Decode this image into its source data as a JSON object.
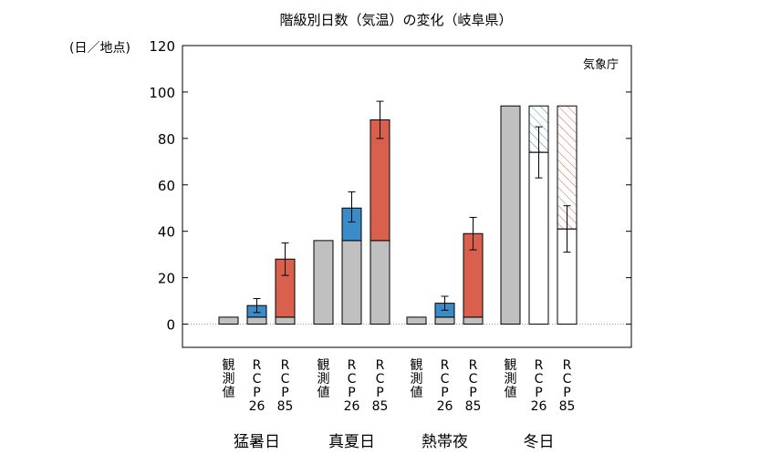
{
  "chart_data": {
    "type": "bar",
    "title": "階級別日数（気温）の変化（岐阜県）",
    "ylabel": "(日／地点)",
    "source": "気象庁",
    "ylim": [
      -10,
      120
    ],
    "yticks": [
      0,
      20,
      40,
      60,
      80,
      100,
      120
    ],
    "bar_labels": {
      "obs": [
        "観",
        "測",
        "値"
      ],
      "rcp26": [
        "R",
        "C",
        "P",
        "26"
      ],
      "rcp85": [
        "R",
        "C",
        "P",
        "85"
      ]
    },
    "groups": [
      {
        "name": "猛暑日",
        "bars": [
          {
            "kind": "obs",
            "base": 3,
            "change": 0
          },
          {
            "kind": "rcp26",
            "base": 3,
            "change": 5,
            "err": [
              5,
              11
            ]
          },
          {
            "kind": "rcp85",
            "base": 3,
            "change": 25,
            "err": [
              21,
              35
            ]
          }
        ]
      },
      {
        "name": "真夏日",
        "bars": [
          {
            "kind": "obs",
            "base": 36,
            "change": 0
          },
          {
            "kind": "rcp26",
            "base": 36,
            "change": 14,
            "err": [
              44,
              57
            ]
          },
          {
            "kind": "rcp85",
            "base": 36,
            "change": 52,
            "err": [
              80,
              96
            ]
          }
        ]
      },
      {
        "name": "熱帯夜",
        "bars": [
          {
            "kind": "obs",
            "base": 3,
            "change": 0
          },
          {
            "kind": "rcp26",
            "base": 3,
            "change": 6,
            "err": [
              6,
              12
            ]
          },
          {
            "kind": "rcp85",
            "base": 3,
            "change": 36,
            "err": [
              32,
              46
            ]
          }
        ]
      },
      {
        "name": "冬日",
        "bars": [
          {
            "kind": "obs",
            "base": 94,
            "change": 0
          },
          {
            "kind": "rcp26",
            "base": 94,
            "change": -20,
            "err": [
              63,
              85
            ]
          },
          {
            "kind": "rcp85",
            "base": 94,
            "change": -53,
            "err": [
              31,
              51
            ]
          }
        ]
      }
    ],
    "colors": {
      "obs": "#c0c0c0",
      "increase_rcp26": "#3a8cc8",
      "increase_rcp85": "#d9604c",
      "decrease_rcp26": "#3a8cc8",
      "decrease_rcp85": "#d9604c"
    }
  }
}
